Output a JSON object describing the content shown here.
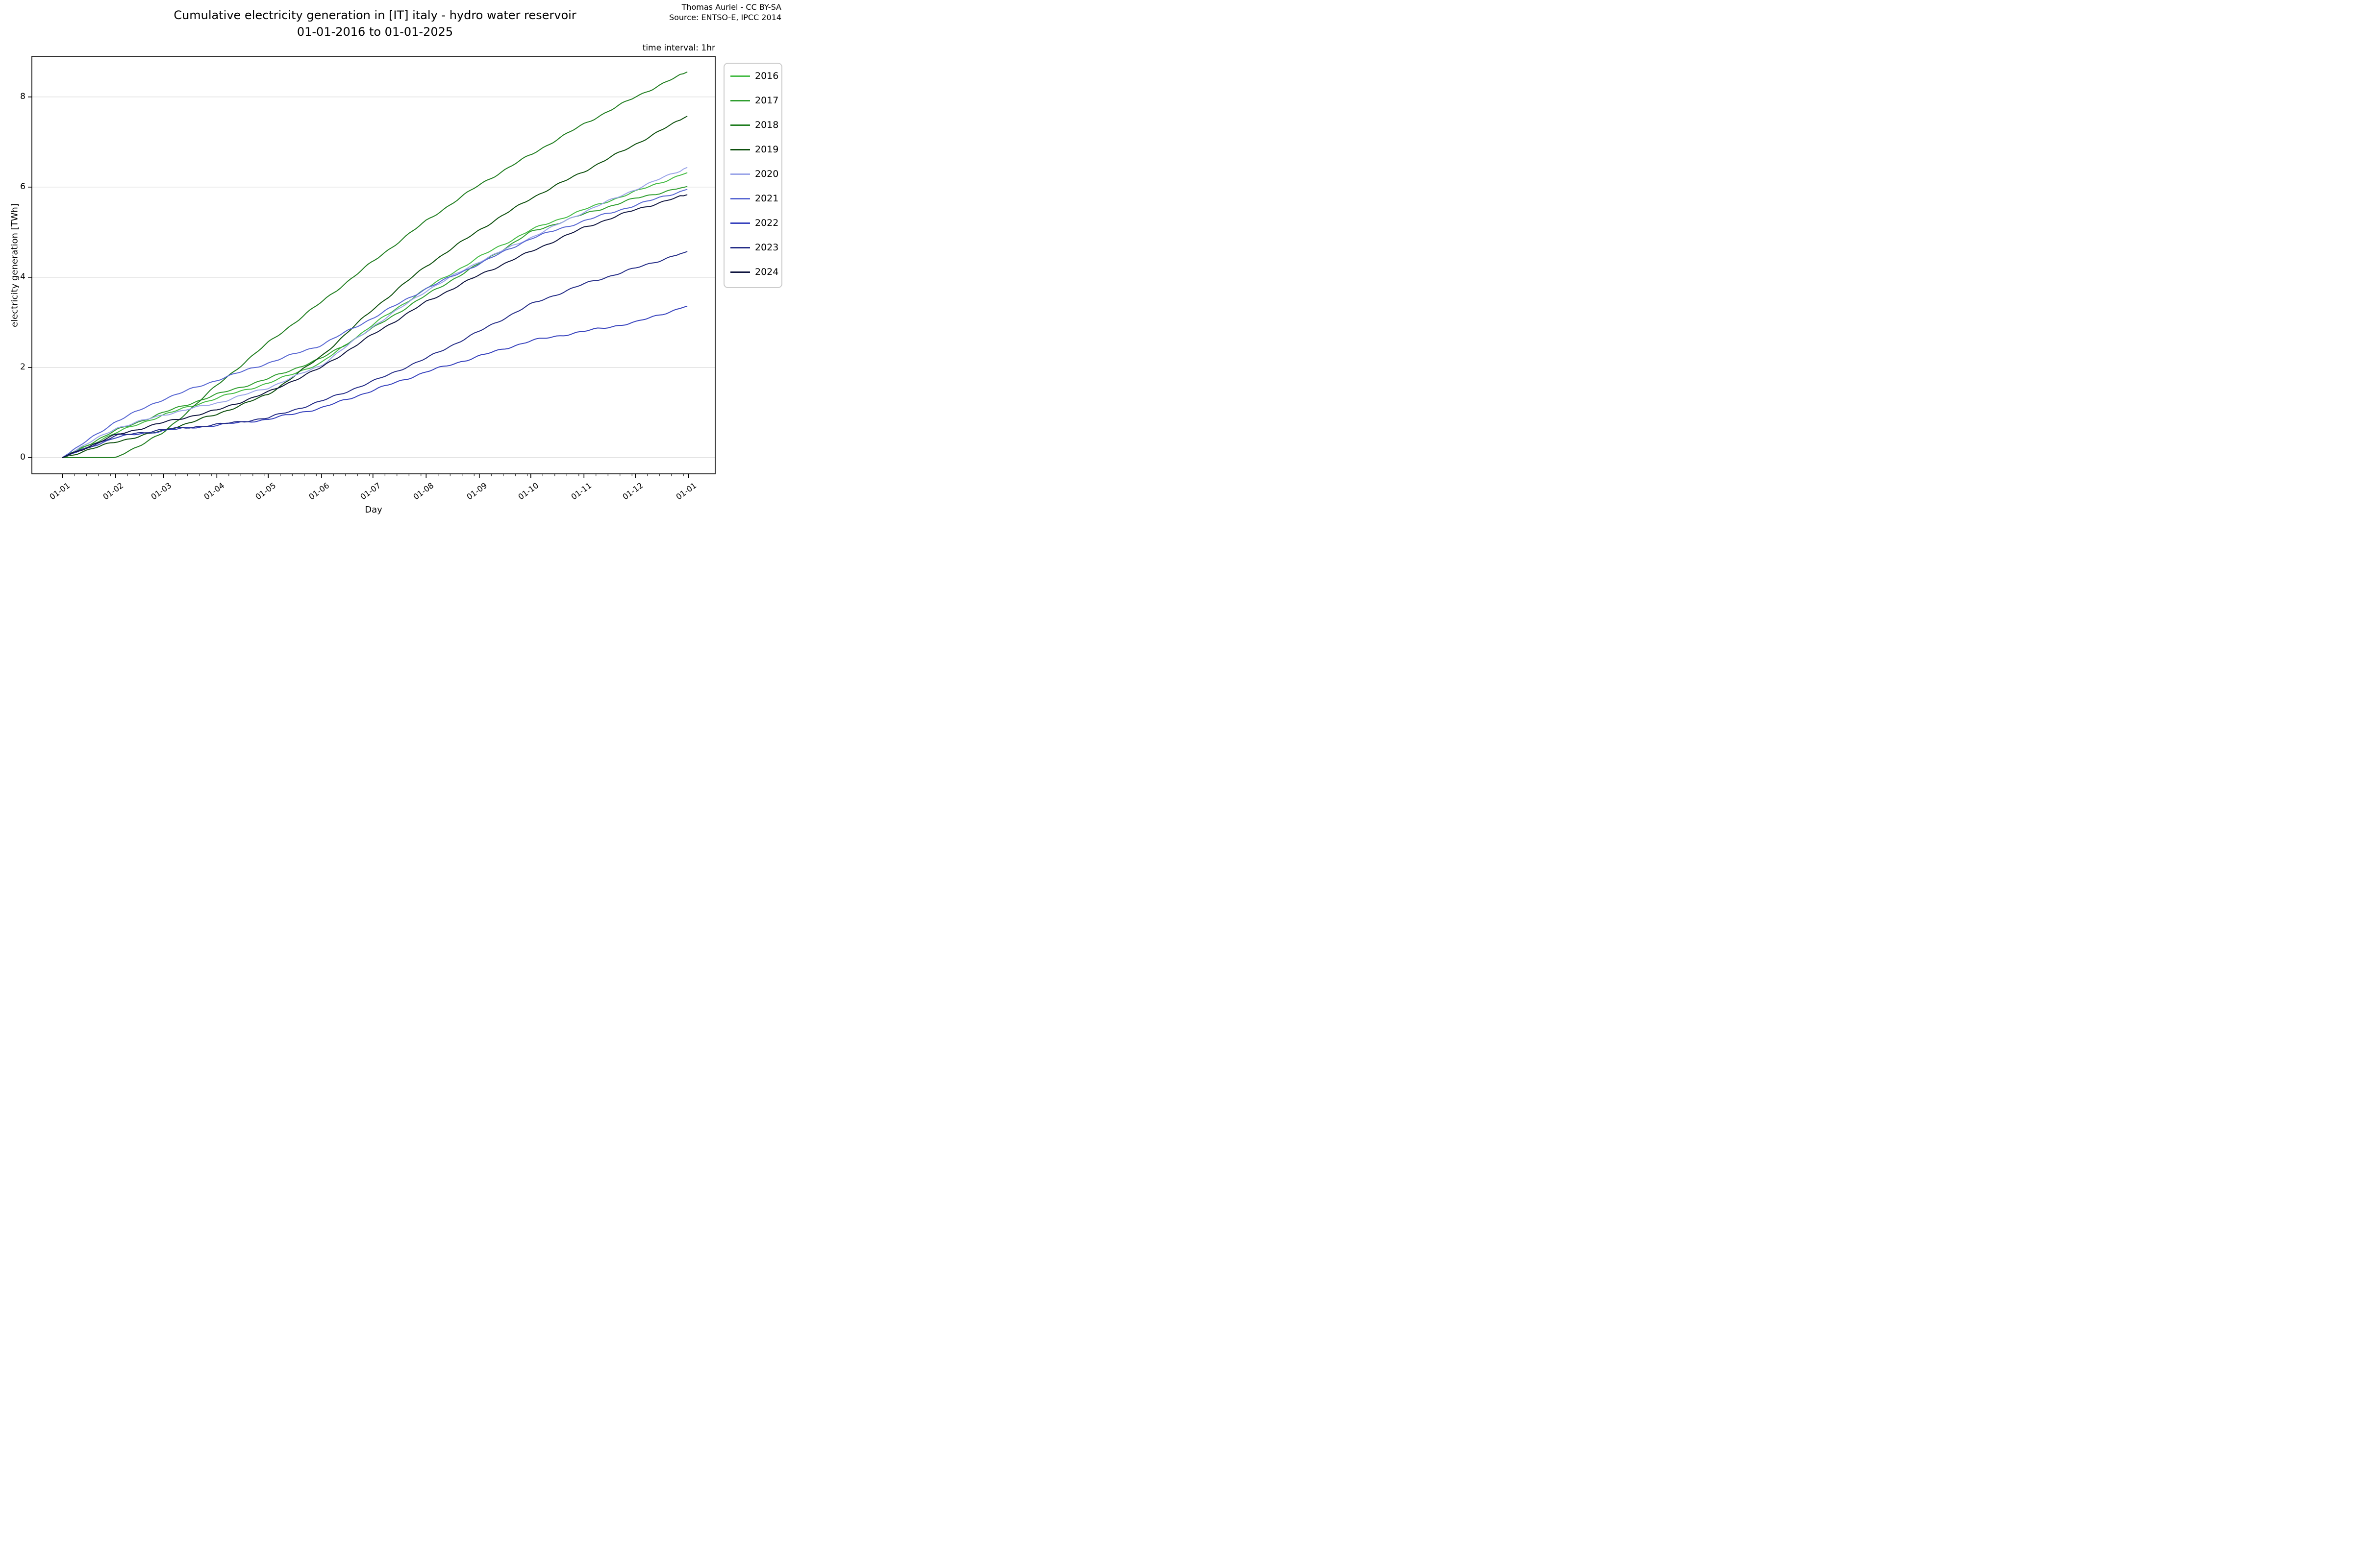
{
  "header": {
    "title_line1": "Cumulative electricity generation in [IT] italy - hydro water reservoir",
    "title_line2": "01-01-2016 to 01-01-2025",
    "attribution_line1": "Thomas Auriel - CC BY-SA",
    "attribution_line2": "Source: ENTSO-E, IPCC 2014",
    "time_interval_note": "time interval: 1hr"
  },
  "chart_data": {
    "type": "line",
    "title": "Cumulative electricity generation in [IT] italy - hydro water reservoir 01-01-2016 to 01-01-2025",
    "xlabel": "Day",
    "ylabel": "electricity generation [TWh]",
    "x_tick_labels": [
      "01-01",
      "01-02",
      "01-03",
      "01-04",
      "01-05",
      "01-06",
      "01-07",
      "01-08",
      "01-09",
      "01-10",
      "01-11",
      "01-12",
      "01-01"
    ],
    "x_days": [
      0,
      31,
      59,
      90,
      120,
      151,
      181,
      212,
      243,
      273,
      304,
      334,
      365
    ],
    "yticks": [
      0,
      2,
      4,
      6,
      8
    ],
    "ylim": [
      -0.36,
      8.9
    ],
    "xlim_days": [
      -17.8,
      380.5
    ],
    "grid": true,
    "legend_position": "outside right",
    "units": "TWh",
    "series": [
      {
        "name": "2016",
        "color": "#44bb44",
        "values": [
          0,
          0.55,
          0.95,
          1.32,
          1.65,
          2.1,
          2.95,
          3.75,
          4.45,
          5.05,
          5.5,
          5.9,
          6.33
        ]
      },
      {
        "name": "2017",
        "color": "#2f9e2f",
        "values": [
          0,
          0.6,
          1.0,
          1.4,
          1.75,
          2.2,
          2.87,
          3.6,
          4.3,
          5.0,
          5.4,
          5.75,
          6.02
        ]
      },
      {
        "name": "2018",
        "color": "#1f7d1f",
        "values": [
          0,
          0.0,
          0.55,
          1.6,
          2.55,
          3.45,
          4.35,
          5.25,
          6.05,
          6.72,
          7.4,
          8.0,
          8.57
        ]
      },
      {
        "name": "2019",
        "color": "#0d4f0d",
        "values": [
          0,
          0.35,
          0.6,
          0.96,
          1.4,
          2.25,
          3.29,
          4.25,
          5.05,
          5.75,
          6.35,
          6.95,
          7.59
        ]
      },
      {
        "name": "2020",
        "color": "#9aa4e8",
        "values": [
          0,
          0.65,
          0.95,
          1.21,
          1.55,
          2.05,
          2.91,
          3.7,
          4.35,
          4.88,
          5.45,
          5.95,
          6.45
        ]
      },
      {
        "name": "2021",
        "color": "#5766d2",
        "values": [
          0,
          0.8,
          1.3,
          1.72,
          2.1,
          2.5,
          3.1,
          3.75,
          4.3,
          4.86,
          5.25,
          5.6,
          5.96
        ]
      },
      {
        "name": "2022",
        "color": "#3742bd",
        "values": [
          0,
          0.45,
          0.6,
          0.72,
          0.85,
          1.1,
          1.49,
          1.9,
          2.25,
          2.59,
          2.8,
          3.0,
          3.37
        ]
      },
      {
        "name": "2023",
        "color": "#252d87",
        "values": [
          0,
          0.48,
          0.62,
          0.73,
          0.88,
          1.25,
          1.69,
          2.2,
          2.8,
          3.4,
          3.85,
          4.2,
          4.58
        ]
      },
      {
        "name": "2024",
        "color": "#10153f",
        "values": [
          0,
          0.5,
          0.78,
          1.05,
          1.45,
          2.0,
          2.73,
          3.45,
          4.05,
          4.57,
          5.1,
          5.5,
          5.84
        ]
      }
    ]
  }
}
